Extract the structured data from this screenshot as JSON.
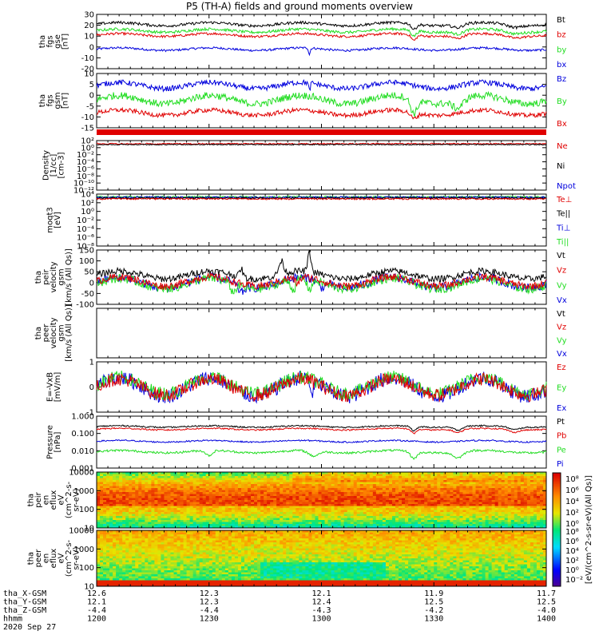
{
  "title": "P5 (TH-A) fields and ground moments overview",
  "colors": {
    "black": "#000000",
    "red": "#e00000",
    "green": "#22dd22",
    "blue": "#0000dd"
  },
  "chart_data": [
    {
      "type": "line",
      "id": "fgs_gse",
      "ylabel": [
        "tha",
        "fgs",
        "gse",
        "[nT]"
      ],
      "ylim": [
        -20,
        30
      ],
      "yticks": [
        "30",
        "20",
        "10",
        "0",
        "-10",
        "-20"
      ],
      "series": [
        {
          "name": "Bt",
          "color": "black",
          "level": 22
        },
        {
          "name": "bz",
          "color": "red",
          "level": 11
        },
        {
          "name": "by",
          "color": "green",
          "level": 15
        },
        {
          "name": "bx",
          "color": "blue",
          "level": -2
        }
      ]
    },
    {
      "type": "line",
      "id": "fgs_gsm",
      "ylabel": [
        "tha",
        "fgs",
        "gsm",
        "[nT]"
      ],
      "ylim": [
        -17,
        10
      ],
      "yticks": [
        "10",
        "5",
        "0",
        "-5",
        "-10",
        "-15"
      ],
      "series": [
        {
          "name": "Bz",
          "color": "blue",
          "level": 4
        },
        {
          "name": "By",
          "color": "green",
          "level": -4
        },
        {
          "name": "Bx",
          "color": "red",
          "level": -10
        }
      ]
    },
    {
      "type": "line",
      "id": "density",
      "ylabel": [
        "Density",
        "[1/cc]",
        "[cm-3]"
      ],
      "yticks": [
        "10²",
        "10⁰",
        "10⁻²",
        "10⁻⁴",
        "10⁻⁶",
        "10⁻⁸",
        "10⁻¹⁰",
        "10⁻¹²"
      ],
      "series": [
        {
          "name": "Ne",
          "color": "red"
        },
        {
          "name": "Ni",
          "color": "black"
        },
        {
          "name": "Npot",
          "color": "blue"
        }
      ]
    },
    {
      "type": "line",
      "id": "temperature",
      "ylabel": [
        "moqt3",
        "[eV]"
      ],
      "yticks": [
        "10⁴",
        "10²",
        "10⁰",
        "10⁻²",
        "10⁻⁴",
        "10⁻⁶",
        "10⁻⁸"
      ],
      "series": [
        {
          "name": "Te⊥",
          "color": "red"
        },
        {
          "name": "Te||",
          "color": "black"
        },
        {
          "name": "Ti⊥",
          "color": "blue"
        },
        {
          "name": "Ti||",
          "color": "green"
        }
      ]
    },
    {
      "type": "line",
      "id": "peir_velocity",
      "ylabel": [
        "tha",
        "peir",
        "velocity",
        "gsm",
        "[km/s (All Qs)]"
      ],
      "ylim": [
        -100,
        150
      ],
      "yticks": [
        "150",
        "100",
        "50",
        "0",
        "-50",
        "-100"
      ],
      "series": [
        {
          "name": "Vt",
          "color": "black"
        },
        {
          "name": "Vz",
          "color": "red"
        },
        {
          "name": "Vy",
          "color": "green"
        },
        {
          "name": "Vx",
          "color": "blue"
        }
      ]
    },
    {
      "type": "line",
      "id": "peer_velocity",
      "ylabel": [
        "tha",
        "peer",
        "velocity",
        "gsm",
        "[km/s (All Qs)]"
      ],
      "series": [
        {
          "name": "Vt",
          "color": "black"
        },
        {
          "name": "Vz",
          "color": "red"
        },
        {
          "name": "Vy",
          "color": "green"
        },
        {
          "name": "Vx",
          "color": "blue"
        }
      ]
    },
    {
      "type": "line",
      "id": "efield",
      "ylabel": [
        "E=-VxB",
        "[mV/m]"
      ],
      "ylim": [
        -1.5,
        1.5
      ],
      "yticks": [
        "1",
        "0",
        "-1"
      ],
      "series": [
        {
          "name": "Ez",
          "color": "red"
        },
        {
          "name": "Ey",
          "color": "green"
        },
        {
          "name": "Ex",
          "color": "blue"
        }
      ]
    },
    {
      "type": "line",
      "id": "pressure",
      "ylabel": [
        "Pressure",
        "[nPa]"
      ],
      "yticks": [
        "1.000",
        "0.100",
        "0.010",
        "0.001"
      ],
      "series": [
        {
          "name": "Pt",
          "color": "black"
        },
        {
          "name": "Pb",
          "color": "red"
        },
        {
          "name": "Pe",
          "color": "green"
        },
        {
          "name": "Pi",
          "color": "blue"
        }
      ]
    },
    {
      "type": "heatmap",
      "id": "peir_spec",
      "ylabel": [
        "tha",
        "peir",
        "en",
        "eflux",
        "eV",
        "(cm^2-s-",
        "sr-eV)"
      ],
      "yticks": [
        "10000",
        "1000",
        "100",
        "10"
      ]
    },
    {
      "type": "heatmap",
      "id": "peer_spec",
      "ylabel": [
        "tha",
        "peer",
        "en",
        "eflux",
        "eV",
        "(cm^2-s-",
        "sr-eV)"
      ],
      "yticks": [
        "10000",
        "1000",
        "100",
        "10"
      ]
    }
  ],
  "colorbar": {
    "label": "[eV/(cm^2-s-sr-eV)(All Qs)]",
    "ticks_top": [
      "10⁸",
      "10⁶",
      "10⁴",
      "10²",
      "10⁰"
    ],
    "ticks_bottom": [
      "10⁸",
      "10⁶",
      "10⁴",
      "10²",
      "10⁰",
      "10⁻²"
    ]
  },
  "x_axis": {
    "rows": [
      {
        "label": "tha_X-GSM",
        "values": [
          "12.6",
          "12.3",
          "12.1",
          "11.9",
          "11.7"
        ]
      },
      {
        "label": "tha_Y-GSM",
        "values": [
          "12.1",
          "12.3",
          "12.4",
          "12.5",
          "12.5"
        ]
      },
      {
        "label": "tha_Z-GSM",
        "values": [
          "-4.4",
          "-4.4",
          "-4.3",
          "-4.2",
          "-4.0"
        ]
      },
      {
        "label": "hhmm",
        "values": [
          "1200",
          "1230",
          "1300",
          "1330",
          "1400"
        ]
      }
    ],
    "date": "2020 Sep 27"
  }
}
